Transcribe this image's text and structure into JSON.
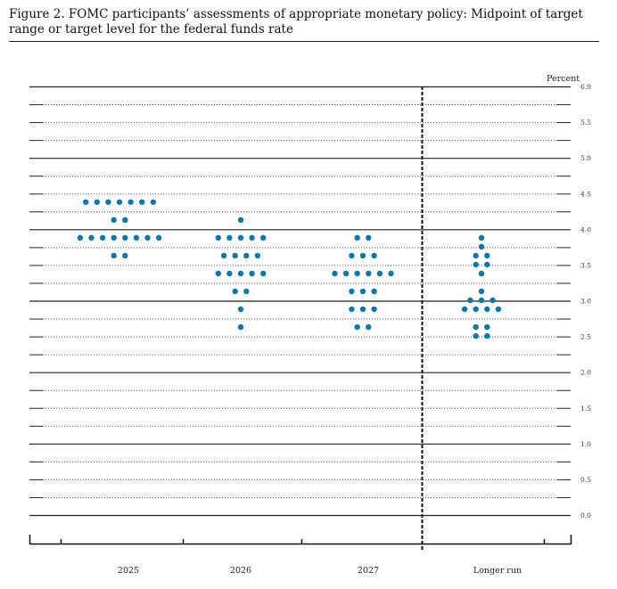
{
  "chart_data": {
    "type": "scatter",
    "title": "Figure 2.  FOMC participants’ assessments of appropriate monetary policy: Midpoint of target range or target level for the federal funds rate",
    "ylabel": "Percent",
    "ylim": [
      0,
      6
    ],
    "yticks": [
      "0.0",
      "0.5",
      "1.0",
      "1.5",
      "2.0",
      "2.5",
      "3.0",
      "3.5",
      "4.0",
      "4.5",
      "5.0",
      "5.5",
      "6.0"
    ],
    "categories": [
      "2025",
      "2026",
      "2027",
      "Longer run"
    ],
    "dot_color": "#0a78b0",
    "dots": [
      [
        [
          4.375,
          7
        ],
        [
          4.125,
          2
        ],
        [
          3.875,
          8
        ],
        [
          3.625,
          2
        ]
      ],
      [
        [
          4.125,
          1
        ],
        [
          3.875,
          5
        ],
        [
          3.625,
          4
        ],
        [
          3.375,
          5
        ],
        [
          3.125,
          2
        ],
        [
          2.875,
          1
        ],
        [
          2.625,
          1
        ]
      ],
      [
        [
          3.875,
          2
        ],
        [
          3.625,
          3
        ],
        [
          3.375,
          6
        ],
        [
          3.125,
          3
        ],
        [
          2.875,
          3
        ],
        [
          2.625,
          2
        ]
      ],
      [
        [
          3.875,
          1
        ],
        [
          3.75,
          1
        ],
        [
          3.625,
          2
        ],
        [
          3.5,
          2
        ],
        [
          3.375,
          1
        ],
        [
          3.125,
          1
        ],
        [
          3.0,
          3
        ],
        [
          2.875,
          4
        ],
        [
          2.625,
          2
        ],
        [
          2.5,
          2
        ]
      ]
    ]
  }
}
